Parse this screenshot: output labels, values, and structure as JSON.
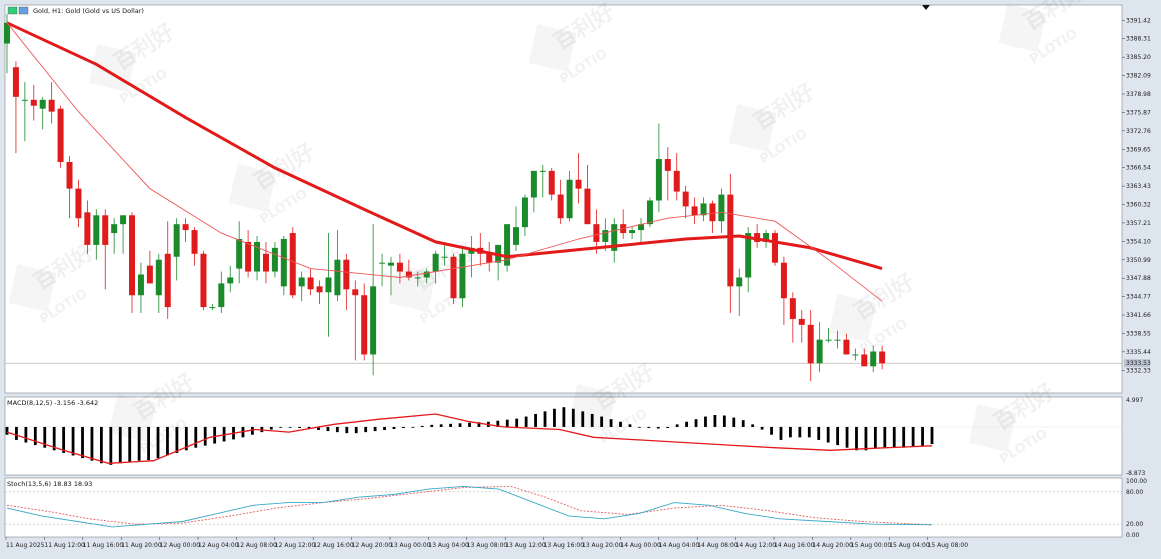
{
  "chart_data": [
    {
      "type": "candlestick",
      "title": "Gold, H1: Gold (Gold vs US Dollar)",
      "symbol": "Gold",
      "timeframe": "H1",
      "ylim": [
        3329.0,
        3393.5
      ],
      "y_ticks": [
        "3391.42",
        "3388.31",
        "3385.20",
        "3382.09",
        "3378.98",
        "3375.87",
        "3372.76",
        "3369.65",
        "3366.54",
        "3363.43",
        "3360.32",
        "3357.21",
        "3354.10",
        "3350.99",
        "3347.88",
        "3344.77",
        "3341.66",
        "3338.55",
        "3335.44",
        "3332.33"
      ],
      "current_price": "3333.53",
      "x_ticks": [
        "11 Aug 2025",
        "11 Aug 12:00",
        "11 Aug 16:00",
        "11 Aug 20:00",
        "12 Aug 00:00",
        "12 Aug 04:00",
        "12 Aug 08:00",
        "12 Aug 12:00",
        "12 Aug 16:00",
        "12 Aug 20:00",
        "13 Aug 00:00",
        "13 Aug 04:00",
        "13 Aug 08:00",
        "13 Aug 12:00",
        "13 Aug 16:00",
        "13 Aug 20:00",
        "14 Aug 00:00",
        "14 Aug 04:00",
        "14 Aug 08:00",
        "14 Aug 12:00",
        "14 Aug 16:00",
        "14 Aug 20:00",
        "15 Aug 00:00",
        "15 Aug 04:00",
        "15 Aug 08:00"
      ],
      "candles": [
        [
          3387.5,
          3392.5,
          3382.5,
          3391.0
        ],
        [
          3383.5,
          3384.5,
          3369.0,
          3378.5
        ],
        [
          3378.0,
          3381.0,
          3371.0,
          3378.0
        ],
        [
          3378.0,
          3380.5,
          3374.5,
          3377.0
        ],
        [
          3376.5,
          3378.5,
          3373.0,
          3378.0
        ],
        [
          3378.0,
          3381.0,
          3374.0,
          3376.0
        ],
        [
          3376.5,
          3377.0,
          3366.5,
          3367.5
        ],
        [
          3367.5,
          3368.5,
          3358.0,
          3363.0
        ],
        [
          3363.0,
          3364.5,
          3356.5,
          3358.0
        ],
        [
          3359.0,
          3361.0,
          3352.0,
          3353.5
        ],
        [
          3353.5,
          3359.5,
          3351.0,
          3358.5
        ],
        [
          3358.5,
          3359.5,
          3346.0,
          3353.5
        ],
        [
          3355.5,
          3358.0,
          3352.0,
          3357.0
        ],
        [
          3357.0,
          3358.5,
          3352.0,
          3358.5
        ],
        [
          3358.5,
          3359.0,
          3342.0,
          3345.0
        ],
        [
          3345.0,
          3350.5,
          3342.0,
          3348.5
        ],
        [
          3350.0,
          3352.5,
          3347.0,
          3347.0
        ],
        [
          3345.0,
          3352.0,
          3342.0,
          3351.0
        ],
        [
          3352.0,
          3357.5,
          3341.0,
          3343.0
        ],
        [
          3351.5,
          3358.0,
          3347.5,
          3357.0
        ],
        [
          3357.0,
          3358.0,
          3354.0,
          3356.0
        ],
        [
          3356.0,
          3356.5,
          3350.0,
          3352.0
        ],
        [
          3352.0,
          3352.5,
          3342.5,
          3343.0
        ],
        [
          3343.0,
          3343.5,
          3342.5,
          3343.0
        ],
        [
          3343.0,
          3349.0,
          3342.0,
          3347.0
        ],
        [
          3347.0,
          3350.0,
          3345.5,
          3348.0
        ],
        [
          3349.5,
          3357.5,
          3347.0,
          3354.5
        ],
        [
          3354.0,
          3356.0,
          3348.0,
          3349.0
        ],
        [
          3349.0,
          3355.0,
          3347.5,
          3354.0
        ],
        [
          3352.0,
          3354.0,
          3347.0,
          3349.0
        ],
        [
          3349.0,
          3354.0,
          3348.0,
          3353.0
        ],
        [
          3346.5,
          3355.0,
          3345.0,
          3354.5
        ],
        [
          3355.5,
          3356.5,
          3344.5,
          3345.0
        ],
        [
          3346.5,
          3349.0,
          3344.0,
          3348.0
        ],
        [
          3348.0,
          3349.5,
          3345.0,
          3346.0
        ],
        [
          3346.5,
          3347.5,
          3343.5,
          3345.5
        ],
        [
          3345.5,
          3355.5,
          3338.0,
          3348.0
        ],
        [
          3345.0,
          3356.0,
          3344.0,
          3351.0
        ],
        [
          3351.0,
          3352.0,
          3342.5,
          3346.0
        ],
        [
          3346.0,
          3347.5,
          3334.0,
          3345.0
        ],
        [
          3345.0,
          3347.0,
          3334.0,
          3335.0
        ],
        [
          3335.0,
          3357.0,
          3331.5,
          3346.5
        ],
        [
          3350.5,
          3352.0,
          3346.5,
          3350.5
        ],
        [
          3350.0,
          3351.5,
          3345.0,
          3350.5
        ],
        [
          3350.5,
          3352.0,
          3347.0,
          3349.0
        ],
        [
          3349.0,
          3351.0,
          3347.5,
          3348.0
        ],
        [
          3348.0,
          3349.0,
          3346.5,
          3348.0
        ],
        [
          3348.0,
          3349.5,
          3347.0,
          3349.0
        ],
        [
          3349.0,
          3352.5,
          3347.0,
          3352.0
        ],
        [
          3351.5,
          3354.0,
          3350.0,
          3351.5
        ],
        [
          3351.5,
          3352.0,
          3343.5,
          3344.5
        ],
        [
          3344.5,
          3353.0,
          3343.0,
          3352.0
        ],
        [
          3352.0,
          3355.0,
          3348.0,
          3353.0
        ],
        [
          3353.0,
          3355.5,
          3350.0,
          3352.0
        ],
        [
          3352.0,
          3354.0,
          3349.0,
          3350.5
        ],
        [
          3350.5,
          3353.0,
          3347.5,
          3353.5
        ],
        [
          3350.0,
          3357.0,
          3349.0,
          3357.0
        ],
        [
          3353.5,
          3360.0,
          3352.5,
          3356.5
        ],
        [
          3356.5,
          3362.0,
          3355.0,
          3361.5
        ],
        [
          3361.5,
          3366.0,
          3359.0,
          3366.0
        ],
        [
          3366.0,
          3367.0,
          3361.5,
          3366.0
        ],
        [
          3366.0,
          3366.5,
          3361.0,
          3362.0
        ],
        [
          3362.0,
          3364.5,
          3357.0,
          3358.0
        ],
        [
          3358.0,
          3366.0,
          3357.5,
          3364.5
        ],
        [
          3364.5,
          3369.0,
          3360.5,
          3363.0
        ],
        [
          3363.0,
          3367.0,
          3357.0,
          3357.0
        ],
        [
          3357.0,
          3359.5,
          3352.0,
          3354.0
        ],
        [
          3354.0,
          3358.0,
          3352.5,
          3356.0
        ],
        [
          3352.5,
          3358.0,
          3350.5,
          3357.0
        ],
        [
          3357.0,
          3359.5,
          3354.5,
          3355.5
        ],
        [
          3355.5,
          3356.5,
          3354.5,
          3356.0
        ],
        [
          3356.0,
          3358.0,
          3354.0,
          3357.0
        ],
        [
          3357.0,
          3361.5,
          3356.5,
          3361.0
        ],
        [
          3361.0,
          3374.0,
          3359.0,
          3368.0
        ],
        [
          3368.0,
          3370.0,
          3361.0,
          3366.0
        ],
        [
          3366.0,
          3369.0,
          3361.0,
          3362.5
        ],
        [
          3362.5,
          3363.5,
          3358.0,
          3360.0
        ],
        [
          3360.0,
          3361.5,
          3357.0,
          3358.5
        ],
        [
          3358.5,
          3361.5,
          3357.5,
          3360.5
        ],
        [
          3360.5,
          3361.0,
          3355.5,
          3357.5
        ],
        [
          3357.5,
          3363.0,
          3355.5,
          3362.0
        ],
        [
          3362.0,
          3365.5,
          3342.0,
          3346.5
        ],
        [
          3346.5,
          3349.5,
          3341.5,
          3348.0
        ],
        [
          3348.0,
          3356.5,
          3345.5,
          3355.5
        ],
        [
          3355.5,
          3357.0,
          3353.0,
          3354.0
        ],
        [
          3354.0,
          3356.0,
          3353.0,
          3355.5
        ],
        [
          3355.5,
          3356.0,
          3350.0,
          3350.5
        ],
        [
          3350.5,
          3351.5,
          3340.0,
          3344.5
        ],
        [
          3344.5,
          3345.5,
          3337.0,
          3341.0
        ],
        [
          3341.0,
          3342.5,
          3337.0,
          3340.0
        ],
        [
          3340.0,
          3342.5,
          3330.5,
          3333.5
        ],
        [
          3333.5,
          3340.5,
          3332.0,
          3337.5
        ],
        [
          3337.5,
          3339.5,
          3337.0,
          3337.5
        ],
        [
          3337.5,
          3339.0,
          3336.0,
          3337.5
        ],
        [
          3337.5,
          3338.5,
          3335.0,
          3335.0
        ],
        [
          3335.0,
          3336.0,
          3334.0,
          3335.0
        ],
        [
          3335.0,
          3336.0,
          3333.0,
          3333.0
        ],
        [
          3333.0,
          3336.5,
          3332.0,
          3335.5
        ],
        [
          3335.5,
          3336.5,
          3332.5,
          3333.5
        ]
      ],
      "ma_fast": [
        [
          0,
          3391.0
        ],
        [
          8,
          3376.0
        ],
        [
          16,
          3363.0
        ],
        [
          24,
          3355.5
        ],
        [
          34,
          3349.5
        ],
        [
          44,
          3348.0
        ],
        [
          56,
          3351.0
        ],
        [
          64,
          3354.5
        ],
        [
          74,
          3358.0
        ],
        [
          80,
          3359.0
        ],
        [
          86,
          3357.5
        ],
        [
          92,
          3351.0
        ],
        [
          98,
          3344.0
        ]
      ],
      "ma_slow": [
        [
          0,
          3391.0
        ],
        [
          10,
          3384.0
        ],
        [
          20,
          3375.0
        ],
        [
          30,
          3366.5
        ],
        [
          40,
          3359.5
        ],
        [
          48,
          3354.0
        ],
        [
          56,
          3351.5
        ],
        [
          66,
          3353.0
        ],
        [
          76,
          3354.5
        ],
        [
          82,
          3355.0
        ],
        [
          90,
          3353.0
        ],
        [
          98,
          3349.5
        ]
      ]
    },
    {
      "type": "bar",
      "name": "MACD",
      "label": "MACD(8,12,5) -3.156 -3.642",
      "ylim": [
        -8.873,
        4.997
      ],
      "y_ticks": [
        "4.997",
        "-8.873"
      ],
      "histogram": [
        -1.5,
        -2.5,
        -3.0,
        -3.5,
        -4.0,
        -4.5,
        -5.0,
        -5.5,
        -6.0,
        -6.5,
        -7.0,
        -7.3,
        -7.0,
        -6.8,
        -6.5,
        -6.4,
        -6.0,
        -5.5,
        -5.0,
        -4.5,
        -4.0,
        -3.6,
        -3.2,
        -2.8,
        -2.4,
        -2.0,
        -1.5,
        -1.0,
        -0.5,
        0.0,
        0.0,
        -0.2,
        -0.4,
        -0.6,
        -0.8,
        -1.0,
        -1.2,
        -1.2,
        -1.0,
        -0.8,
        -0.6,
        -0.4,
        -0.2,
        0.0,
        0.2,
        0.4,
        0.5,
        0.6,
        0.7,
        0.8,
        0.9,
        1.0,
        1.2,
        1.4,
        1.6,
        2.0,
        2.5,
        3.0,
        3.5,
        3.8,
        3.5,
        3.0,
        2.5,
        2.0,
        1.5,
        1.0,
        0.5,
        0.0,
        -0.2,
        -0.3,
        -0.2,
        0.5,
        1.0,
        1.5,
        2.0,
        2.3,
        2.2,
        1.8,
        1.3,
        0.5,
        -0.5,
        -1.5,
        -2.5,
        -2.0,
        -2.0,
        -2.0,
        -2.5,
        -3.0,
        -3.5,
        -4.0,
        -4.5,
        -4.5,
        -4.0,
        -4.0,
        -4.0,
        -4.0,
        -3.8,
        -3.6,
        -3.3
      ],
      "signal": [
        [
          0,
          -1.0
        ],
        [
          10,
          -4.5
        ],
        [
          18,
          -7.0
        ],
        [
          26,
          -6.5
        ],
        [
          36,
          -2.0
        ],
        [
          44,
          -0.5
        ],
        [
          50,
          -1.0
        ],
        [
          58,
          0.5
        ],
        [
          66,
          1.5
        ],
        [
          76,
          2.5
        ],
        [
          82,
          1.0
        ],
        [
          88,
          0.0
        ],
        [
          98,
          -0.5
        ],
        [
          104,
          -2.0
        ],
        [
          112,
          -2.5
        ],
        [
          120,
          -3.0
        ],
        [
          128,
          -3.5
        ],
        [
          136,
          -4.0
        ],
        [
          146,
          -4.5
        ],
        [
          156,
          -4.0
        ],
        [
          164,
          -3.64
        ]
      ]
    },
    {
      "type": "line",
      "name": "Stoch",
      "label": "Stoch(13,5,6) 18.83 18.93",
      "ylim": [
        0,
        100
      ],
      "y_ticks": [
        "100.00",
        "80.00",
        "20.00",
        "0.00"
      ],
      "k_line": [
        [
          0,
          50
        ],
        [
          6,
          35
        ],
        [
          12,
          25
        ],
        [
          18,
          15
        ],
        [
          24,
          20
        ],
        [
          30,
          25
        ],
        [
          36,
          40
        ],
        [
          42,
          55
        ],
        [
          48,
          60
        ],
        [
          54,
          60
        ],
        [
          60,
          70
        ],
        [
          66,
          75
        ],
        [
          72,
          85
        ],
        [
          78,
          90
        ],
        [
          84,
          85
        ],
        [
          90,
          60
        ],
        [
          96,
          35
        ],
        [
          102,
          30
        ],
        [
          108,
          40
        ],
        [
          114,
          60
        ],
        [
          120,
          55
        ],
        [
          126,
          40
        ],
        [
          132,
          30
        ],
        [
          140,
          25
        ],
        [
          148,
          20
        ],
        [
          158,
          18.83
        ]
      ],
      "d_line": [
        [
          0,
          55
        ],
        [
          8,
          42
        ],
        [
          14,
          30
        ],
        [
          22,
          20
        ],
        [
          30,
          22
        ],
        [
          38,
          35
        ],
        [
          46,
          50
        ],
        [
          54,
          60
        ],
        [
          62,
          68
        ],
        [
          70,
          78
        ],
        [
          78,
          88
        ],
        [
          86,
          90
        ],
        [
          92,
          70
        ],
        [
          98,
          45
        ],
        [
          106,
          38
        ],
        [
          114,
          50
        ],
        [
          122,
          55
        ],
        [
          130,
          45
        ],
        [
          138,
          32
        ],
        [
          146,
          25
        ],
        [
          158,
          18.93
        ]
      ],
      "levels": [
        80,
        20
      ]
    }
  ],
  "watermark": {
    "text_cn": "百利好",
    "text_en": "PLOTIO"
  },
  "colors": {
    "bull": "#1a8a2a",
    "bear": "#e01b1b",
    "ma": "#e31a1a",
    "stoch_k": "#3aa9c9",
    "stoch_d": "#e06060",
    "grid_bg": "#ffffff",
    "frame": "#dde5ef"
  }
}
